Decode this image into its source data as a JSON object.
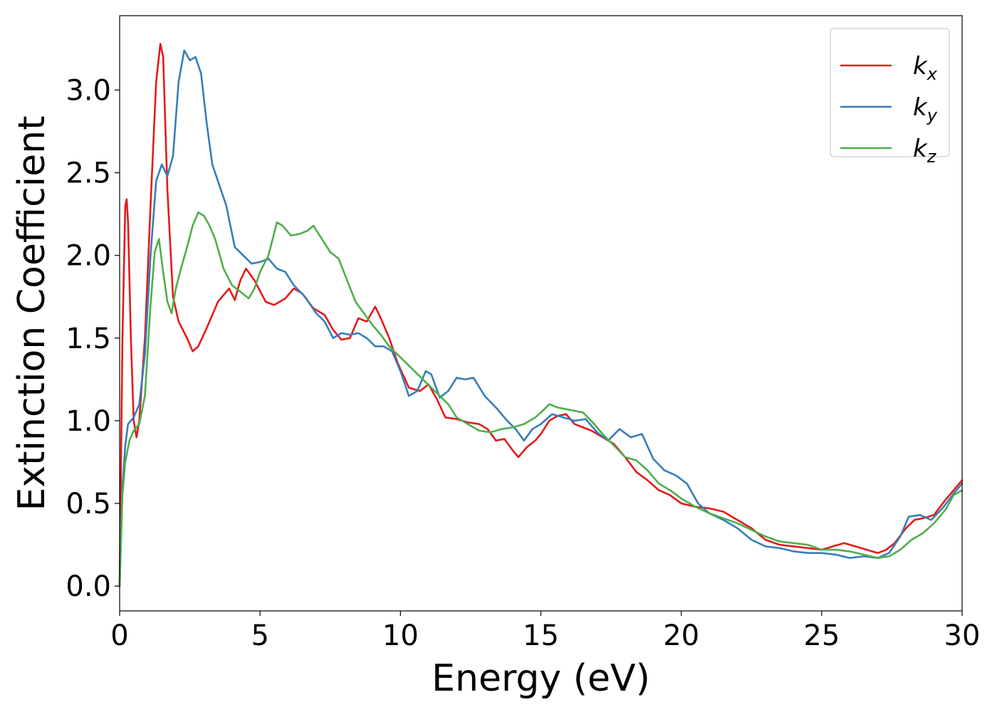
{
  "chart_data": {
    "type": "line",
    "xlabel": "Energy (eV)",
    "ylabel": "Extinction Coefficient",
    "xlim": [
      0,
      30
    ],
    "ylim": [
      -0.15,
      3.45
    ],
    "xticks": [
      0,
      5,
      10,
      15,
      20,
      25,
      30
    ],
    "xtick_labels": [
      "0",
      "5",
      "10",
      "15",
      "20",
      "25",
      "30"
    ],
    "yticks": [
      0.0,
      0.5,
      1.0,
      1.5,
      2.0,
      2.5,
      3.0
    ],
    "ytick_labels": [
      "0.0",
      "0.5",
      "1.0",
      "1.5",
      "2.0",
      "2.5",
      "3.0"
    ],
    "grid": false,
    "legend_position": "top-right",
    "series": [
      {
        "name": "k",
        "subscript": "x",
        "color": "#e41a1c",
        "x": [
          0.0,
          0.1,
          0.2,
          0.25,
          0.3,
          0.4,
          0.5,
          0.6,
          0.7,
          0.9,
          1.1,
          1.3,
          1.45,
          1.55,
          1.7,
          1.9,
          2.1,
          2.4,
          2.6,
          2.8,
          3.1,
          3.5,
          3.9,
          4.1,
          4.3,
          4.5,
          4.8,
          5.2,
          5.5,
          5.9,
          6.2,
          6.5,
          6.9,
          7.3,
          7.6,
          7.9,
          8.2,
          8.5,
          8.8,
          9.1,
          9.3,
          9.6,
          9.9,
          10.3,
          10.7,
          11.0,
          11.3,
          11.6,
          12.0,
          12.4,
          12.8,
          13.1,
          13.4,
          13.7,
          14.0,
          14.2,
          14.5,
          14.8,
          15.0,
          15.3,
          15.6,
          15.9,
          16.2,
          16.5,
          16.8,
          17.2,
          17.6,
          18.0,
          18.4,
          18.8,
          19.2,
          19.6,
          20.0,
          20.5,
          21.0,
          21.5,
          22.0,
          22.5,
          23.0,
          23.5,
          24.0,
          24.5,
          25.0,
          25.4,
          25.8,
          26.2,
          26.6,
          27.0,
          27.3,
          27.6,
          28.0,
          28.3,
          28.6,
          29.0,
          29.4,
          29.7,
          30.0
        ],
        "values": [
          0.0,
          1.5,
          2.3,
          2.34,
          2.2,
          1.5,
          1.0,
          0.9,
          1.0,
          1.5,
          2.3,
          3.05,
          3.28,
          3.2,
          2.4,
          1.75,
          1.6,
          1.5,
          1.42,
          1.45,
          1.56,
          1.72,
          1.8,
          1.73,
          1.85,
          1.92,
          1.85,
          1.72,
          1.7,
          1.74,
          1.8,
          1.77,
          1.68,
          1.64,
          1.55,
          1.49,
          1.5,
          1.62,
          1.6,
          1.69,
          1.62,
          1.5,
          1.35,
          1.2,
          1.18,
          1.22,
          1.13,
          1.02,
          1.01,
          0.99,
          0.98,
          0.95,
          0.88,
          0.89,
          0.82,
          0.78,
          0.84,
          0.88,
          0.92,
          1.0,
          1.03,
          1.04,
          0.98,
          0.96,
          0.94,
          0.9,
          0.86,
          0.78,
          0.69,
          0.64,
          0.58,
          0.55,
          0.5,
          0.48,
          0.47,
          0.45,
          0.4,
          0.35,
          0.28,
          0.25,
          0.24,
          0.23,
          0.22,
          0.24,
          0.26,
          0.24,
          0.22,
          0.2,
          0.22,
          0.26,
          0.35,
          0.4,
          0.41,
          0.43,
          0.52,
          0.58,
          0.64
        ]
      },
      {
        "name": "k",
        "subscript": "y",
        "color": "#377eb8",
        "x": [
          0.0,
          0.1,
          0.2,
          0.3,
          0.5,
          0.7,
          0.9,
          1.1,
          1.3,
          1.5,
          1.7,
          1.9,
          2.1,
          2.3,
          2.5,
          2.7,
          2.9,
          3.1,
          3.3,
          3.5,
          3.8,
          4.1,
          4.4,
          4.7,
          5.0,
          5.3,
          5.6,
          5.9,
          6.2,
          6.6,
          7.0,
          7.3,
          7.6,
          7.9,
          8.2,
          8.5,
          8.8,
          9.1,
          9.4,
          9.7,
          10.0,
          10.3,
          10.6,
          10.9,
          11.1,
          11.4,
          11.7,
          12.0,
          12.3,
          12.6,
          13.0,
          13.4,
          13.8,
          14.1,
          14.4,
          14.7,
          15.0,
          15.4,
          15.8,
          16.2,
          16.6,
          17.0,
          17.4,
          17.8,
          18.2,
          18.6,
          19.0,
          19.4,
          19.8,
          20.2,
          20.6,
          21.0,
          21.5,
          22.0,
          22.5,
          23.0,
          23.5,
          24.0,
          24.5,
          25.0,
          25.5,
          26.0,
          26.5,
          27.0,
          27.4,
          27.8,
          28.1,
          28.5,
          28.9,
          29.3,
          29.7,
          30.0
        ],
        "values": [
          0.0,
          0.6,
          0.85,
          0.98,
          1.02,
          1.1,
          1.4,
          2.0,
          2.45,
          2.55,
          2.48,
          2.6,
          3.05,
          3.24,
          3.18,
          3.2,
          3.1,
          2.8,
          2.55,
          2.45,
          2.3,
          2.05,
          2.0,
          1.95,
          1.96,
          1.98,
          1.92,
          1.9,
          1.82,
          1.75,
          1.65,
          1.6,
          1.5,
          1.53,
          1.52,
          1.53,
          1.5,
          1.45,
          1.45,
          1.42,
          1.3,
          1.15,
          1.18,
          1.3,
          1.28,
          1.14,
          1.18,
          1.26,
          1.25,
          1.26,
          1.15,
          1.08,
          1.0,
          0.95,
          0.88,
          0.95,
          0.98,
          1.04,
          1.02,
          1.0,
          1.01,
          0.93,
          0.88,
          0.95,
          0.9,
          0.92,
          0.77,
          0.7,
          0.67,
          0.62,
          0.5,
          0.44,
          0.4,
          0.35,
          0.28,
          0.24,
          0.23,
          0.21,
          0.2,
          0.2,
          0.19,
          0.17,
          0.18,
          0.17,
          0.2,
          0.3,
          0.42,
          0.43,
          0.4,
          0.47,
          0.56,
          0.62
        ]
      },
      {
        "name": "k",
        "subscript": "z",
        "color": "#4daf4a",
        "x": [
          0.0,
          0.1,
          0.2,
          0.35,
          0.5,
          0.7,
          0.9,
          1.1,
          1.25,
          1.4,
          1.55,
          1.7,
          1.85,
          2.0,
          2.2,
          2.4,
          2.6,
          2.8,
          3.0,
          3.2,
          3.4,
          3.7,
          4.0,
          4.3,
          4.6,
          4.8,
          5.0,
          5.3,
          5.6,
          5.8,
          6.1,
          6.4,
          6.7,
          6.9,
          7.2,
          7.5,
          7.8,
          8.1,
          8.4,
          8.7,
          9.0,
          9.3,
          9.6,
          9.9,
          10.2,
          10.5,
          10.8,
          11.1,
          11.4,
          11.7,
          12.0,
          12.4,
          12.8,
          13.2,
          13.6,
          14.0,
          14.4,
          14.8,
          15.0,
          15.3,
          15.6,
          15.9,
          16.2,
          16.5,
          16.9,
          17.2,
          17.6,
          18.0,
          18.4,
          18.8,
          19.2,
          19.6,
          20.0,
          20.5,
          21.0,
          21.5,
          22.0,
          22.5,
          23.0,
          23.5,
          24.0,
          24.5,
          25.0,
          25.5,
          26.0,
          26.5,
          27.0,
          27.4,
          27.8,
          28.2,
          28.6,
          29.0,
          29.4,
          29.7,
          30.0
        ],
        "values": [
          0.0,
          0.55,
          0.75,
          0.88,
          0.94,
          0.98,
          1.15,
          1.7,
          2.02,
          2.1,
          1.9,
          1.72,
          1.65,
          1.8,
          1.93,
          2.05,
          2.18,
          2.26,
          2.24,
          2.18,
          2.1,
          1.92,
          1.82,
          1.78,
          1.74,
          1.8,
          1.9,
          2.0,
          2.2,
          2.18,
          2.12,
          2.13,
          2.15,
          2.18,
          2.1,
          2.02,
          1.98,
          1.85,
          1.72,
          1.65,
          1.58,
          1.52,
          1.45,
          1.4,
          1.35,
          1.3,
          1.25,
          1.2,
          1.15,
          1.1,
          1.02,
          0.98,
          0.94,
          0.93,
          0.95,
          0.96,
          0.98,
          1.02,
          1.05,
          1.1,
          1.08,
          1.07,
          1.06,
          1.05,
          0.98,
          0.92,
          0.85,
          0.78,
          0.76,
          0.7,
          0.62,
          0.58,
          0.53,
          0.48,
          0.44,
          0.41,
          0.38,
          0.34,
          0.3,
          0.27,
          0.26,
          0.25,
          0.22,
          0.22,
          0.21,
          0.19,
          0.17,
          0.18,
          0.22,
          0.28,
          0.32,
          0.38,
          0.46,
          0.55,
          0.58
        ]
      }
    ]
  }
}
